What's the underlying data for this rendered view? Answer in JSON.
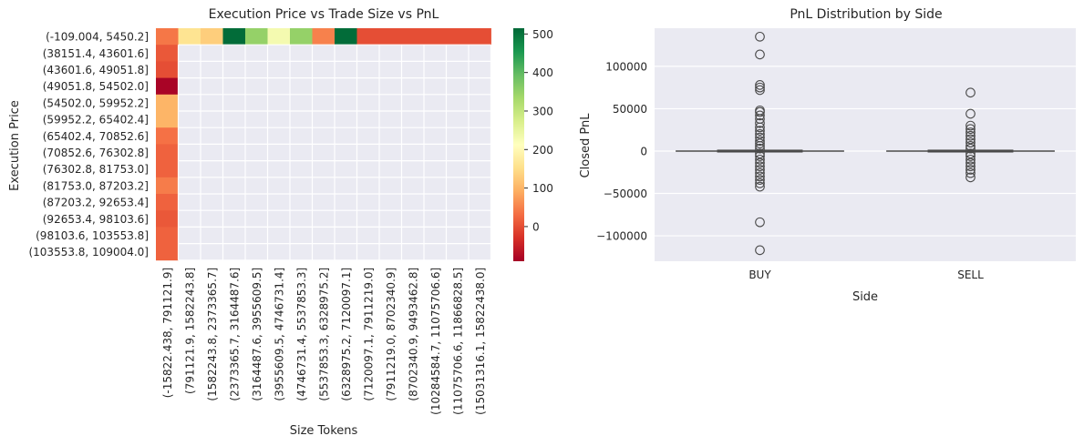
{
  "chart_data": [
    {
      "type": "heatmap",
      "title": "Execution Price vs Trade Size vs PnL",
      "xlabel": "Size Tokens",
      "ylabel": "Execution Price",
      "x_categories": [
        "(-15822.438, 791121.9]",
        "(791121.9, 1582243.8]",
        "(1582243.8, 2373365.7]",
        "(2373365.7, 3164487.6]",
        "(3164487.6, 3955609.5]",
        "(3955609.5, 4746731.4]",
        "(4746731.4, 5537853.3]",
        "(5537853.3, 6328975.2]",
        "(6328975.2, 7120097.1]",
        "(7120097.1, 7911219.0]",
        "(7911219.0, 8702340.9]",
        "(8702340.9, 9493462.8]",
        "(10284584.7, 11075706.6]",
        "(11075706.6, 11866828.5]",
        "(15031316.1, 15822438.0]"
      ],
      "y_categories": [
        "(-109.004, 5450.2]",
        "(38151.4, 43601.6]",
        "(43601.6, 49051.8]",
        "(49051.8, 54502.0]",
        "(54502.0, 59952.2]",
        "(59952.2, 65402.4]",
        "(65402.4, 70852.6]",
        "(70852.6, 76302.8]",
        "(76302.8, 81753.0]",
        "(81753.0, 87203.2]",
        "(87203.2, 92653.4]",
        "(92653.4, 98103.6]",
        "(98103.6, 103553.8]",
        "(103553.8, 109004.0]"
      ],
      "values": [
        [
          40,
          160,
          130,
          510,
          350,
          230,
          350,
          50,
          510,
          0,
          0,
          0,
          0,
          0,
          0
        ],
        [
          10,
          null,
          null,
          null,
          null,
          null,
          null,
          null,
          null,
          null,
          null,
          null,
          null,
          null,
          null
        ],
        [
          0,
          null,
          null,
          null,
          null,
          null,
          null,
          null,
          null,
          null,
          null,
          null,
          null,
          null,
          null
        ],
        [
          -85,
          null,
          null,
          null,
          null,
          null,
          null,
          null,
          null,
          null,
          null,
          null,
          null,
          null,
          null
        ],
        [
          100,
          null,
          null,
          null,
          null,
          null,
          null,
          null,
          null,
          null,
          null,
          null,
          null,
          null,
          null
        ],
        [
          100,
          null,
          null,
          null,
          null,
          null,
          null,
          null,
          null,
          null,
          null,
          null,
          null,
          null,
          null
        ],
        [
          35,
          null,
          null,
          null,
          null,
          null,
          null,
          null,
          null,
          null,
          null,
          null,
          null,
          null,
          null
        ],
        [
          20,
          null,
          null,
          null,
          null,
          null,
          null,
          null,
          null,
          null,
          null,
          null,
          null,
          null,
          null
        ],
        [
          20,
          null,
          null,
          null,
          null,
          null,
          null,
          null,
          null,
          null,
          null,
          null,
          null,
          null,
          null
        ],
        [
          45,
          null,
          null,
          null,
          null,
          null,
          null,
          null,
          null,
          null,
          null,
          null,
          null,
          null,
          null
        ],
        [
          20,
          null,
          null,
          null,
          null,
          null,
          null,
          null,
          null,
          null,
          null,
          null,
          null,
          null,
          null
        ],
        [
          10,
          null,
          null,
          null,
          null,
          null,
          null,
          null,
          null,
          null,
          null,
          null,
          null,
          null,
          null
        ],
        [
          20,
          null,
          null,
          null,
          null,
          null,
          null,
          null,
          null,
          null,
          null,
          null,
          null,
          null,
          null
        ],
        [
          20,
          null,
          null,
          null,
          null,
          null,
          null,
          null,
          null,
          null,
          null,
          null,
          null,
          null,
          null
        ]
      ],
      "colormap": "RdYlGn",
      "vmin": -90,
      "vmax": 515,
      "colorbar_ticks": [
        0,
        100,
        200,
        300,
        400,
        500
      ],
      "missing_color": "#eaeaf2"
    },
    {
      "type": "box",
      "title": "PnL Distribution by Side",
      "xlabel": "Side",
      "ylabel": "Closed PnL",
      "categories": [
        "BUY",
        "SELL"
      ],
      "ylim": [
        -130000,
        145000
      ],
      "yticks": [
        -100000,
        -50000,
        0,
        50000,
        100000
      ],
      "ytick_labels": [
        "−100000",
        "−50000",
        "0",
        "50000",
        "100000"
      ],
      "grid": true,
      "boxes": [
        {
          "name": "BUY",
          "q1": 0,
          "median": 0,
          "q3": 0,
          "whisker_low": 0,
          "whisker_high": 0,
          "outliers": [
            135000,
            114000,
            78000,
            75000,
            72000,
            48000,
            46000,
            42000,
            38000,
            33000,
            28000,
            24000,
            20000,
            16000,
            12000,
            9000,
            6000,
            3000,
            -3000,
            -6000,
            -10000,
            -14000,
            -18000,
            -22000,
            -26000,
            -30000,
            -34000,
            -38000,
            -42000,
            -84000,
            -117000
          ]
        },
        {
          "name": "SELL",
          "q1": 0,
          "median": 0,
          "q3": 0,
          "whisker_low": 0,
          "whisker_high": 0,
          "outliers": [
            69000,
            44000,
            30000,
            26000,
            22000,
            18000,
            14000,
            10000,
            6000,
            3000,
            -3000,
            -6000,
            -10000,
            -14000,
            -18000,
            -22000,
            -26000,
            -31000
          ]
        }
      ],
      "box_color": "#4c72b0"
    }
  ]
}
